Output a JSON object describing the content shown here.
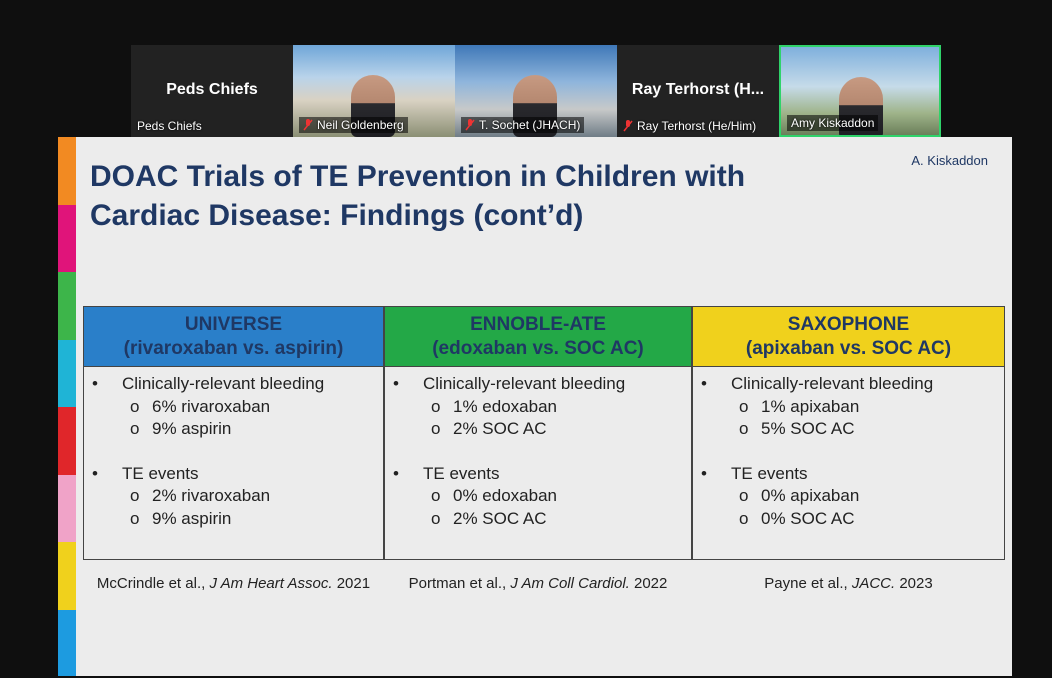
{
  "participants": [
    {
      "display_name": "Peds Chiefs",
      "label": "Peds Chiefs"
    },
    {
      "label": "Neil Goldenberg",
      "muted": true
    },
    {
      "label": "T. Sochet (JHACH)",
      "muted": true
    },
    {
      "display_name": "Ray Terhorst  (H...",
      "label": "Ray Terhorst (He/Him)",
      "muted": true
    },
    {
      "label": "Amy Kiskaddon",
      "active": true
    }
  ],
  "slide": {
    "title_lines": [
      "DOAC Trials of TE Prevention in Children with",
      "Cardiac Disease: Findings (cont’d)"
    ],
    "author": "A. Kiskaddon",
    "bullet": "•",
    "sub_bullet": "o",
    "columns": [
      {
        "name": "UNIVERSE",
        "subtitle": "(rivaroxaban vs. aspirin)",
        "color": "#2a7fc9",
        "sections": [
          {
            "heading": "Clinically-relevant bleeding",
            "items": [
              "6% rivaroxaban",
              "9% aspirin"
            ]
          },
          {
            "heading": "TE events",
            "items": [
              "2% rivaroxaban",
              "9% aspirin"
            ]
          }
        ],
        "citation": {
          "authors": "McCrindle et al.,",
          "journal": "J Am Heart Assoc.",
          "year": "2021"
        }
      },
      {
        "name": "ENNOBLE-ATE",
        "subtitle": "(edoxaban vs. SOC AC)",
        "color": "#23a847",
        "sections": [
          {
            "heading": "Clinically-relevant bleeding",
            "items": [
              "1% edoxaban",
              "2% SOC AC"
            ]
          },
          {
            "heading": "TE events",
            "items": [
              "0% edoxaban",
              "2% SOC AC"
            ]
          }
        ],
        "citation": {
          "authors": "Portman et al.,",
          "journal": "J Am Coll Cardiol.",
          "year": "2022"
        }
      },
      {
        "name": "SAXOPHONE",
        "subtitle": "(apixaban vs. SOC AC)",
        "color": "#f0d11c",
        "sections": [
          {
            "heading": "Clinically-relevant bleeding",
            "items": [
              "1% apixaban",
              "5% SOC AC"
            ]
          },
          {
            "heading": "TE events",
            "items": [
              "0% apixaban",
              "0% SOC AC"
            ]
          }
        ],
        "citation": {
          "authors": "Payne et al.,",
          "journal": "JACC.",
          "year": "2023"
        }
      }
    ]
  }
}
